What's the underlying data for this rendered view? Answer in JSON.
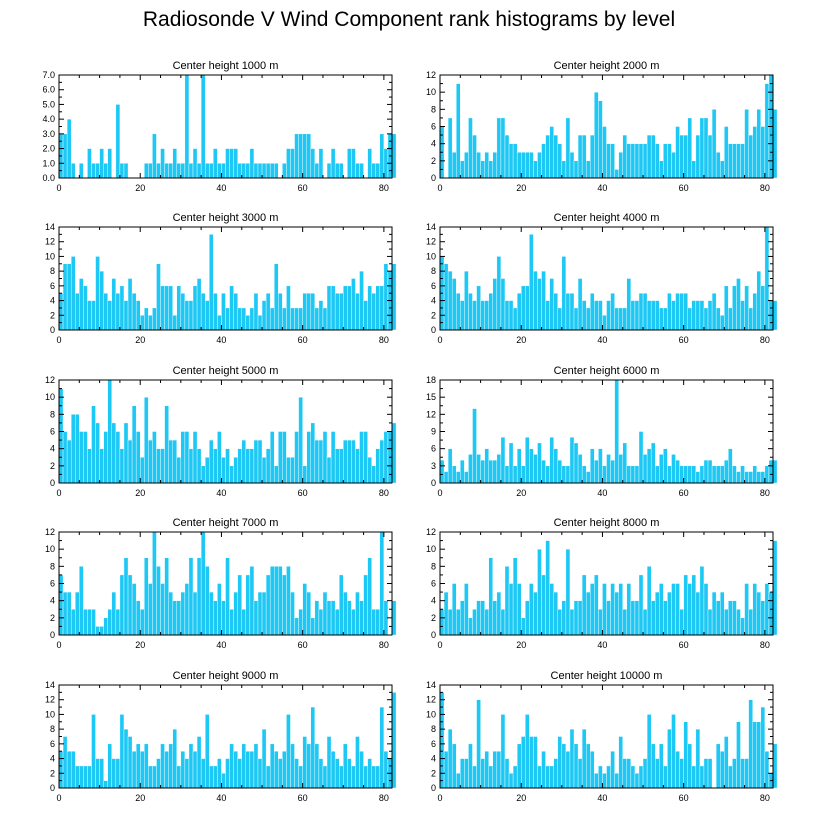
{
  "title": "Radiosonde V Wind Component rank histograms by level",
  "colors": {
    "bar": "#1ec8f5",
    "axis": "#000000",
    "background": "#ffffff"
  },
  "chart_data": [
    {
      "type": "bar",
      "title": "Center height 1000 m",
      "xlabel": "",
      "ylabel": "",
      "xlim": [
        0,
        82
      ],
      "ylim": [
        0,
        7
      ],
      "xticks": [
        0,
        20,
        40,
        60,
        80
      ],
      "yticks": [
        "0.0",
        "1.0",
        "2.0",
        "3.0",
        "4.0",
        "5.0",
        "6.0",
        "7.0"
      ],
      "values": [
        3,
        3,
        4,
        1,
        0,
        1,
        0,
        2,
        1,
        1,
        2,
        1,
        2,
        0,
        5,
        1,
        1,
        0,
        0,
        0,
        0,
        1,
        1,
        3,
        1,
        2,
        1,
        1,
        2,
        1,
        1,
        7,
        1,
        2,
        1,
        7,
        1,
        1,
        2,
        1,
        1,
        2,
        2,
        2,
        1,
        1,
        1,
        2,
        1,
        1,
        1,
        1,
        1,
        1,
        0,
        1,
        2,
        2,
        3,
        3,
        3,
        3,
        2,
        1,
        2,
        0,
        1,
        2,
        1,
        1,
        0,
        2,
        2,
        1,
        1,
        0,
        2,
        1,
        1,
        3,
        2,
        3,
        3
      ]
    },
    {
      "type": "bar",
      "title": "Center height 2000 m",
      "xlabel": "",
      "ylabel": "",
      "xlim": [
        0,
        82
      ],
      "ylim": [
        0,
        12
      ],
      "xticks": [
        0,
        20,
        40,
        60,
        80
      ],
      "yticks": [
        "0",
        "2",
        "4",
        "6",
        "8",
        "10",
        "12"
      ],
      "values": [
        6,
        0,
        7,
        3,
        11,
        2,
        3,
        7,
        5,
        3,
        2,
        3,
        2,
        3,
        7,
        7,
        5,
        4,
        4,
        3,
        3,
        3,
        3,
        2,
        3,
        4,
        5,
        6,
        5,
        4,
        2,
        7,
        3,
        2,
        5,
        5,
        2,
        5,
        10,
        9,
        6,
        4,
        4,
        1,
        3,
        5,
        4,
        4,
        4,
        4,
        4,
        5,
        5,
        4,
        2,
        4,
        4,
        3,
        6,
        5,
        5,
        7,
        2,
        5,
        7,
        7,
        5,
        8,
        3,
        2,
        6,
        4,
        4,
        4,
        4,
        8,
        5,
        6,
        8,
        6,
        11,
        12,
        8
      ]
    },
    {
      "type": "bar",
      "title": "Center height 3000 m",
      "xlabel": "",
      "ylabel": "",
      "xlim": [
        0,
        82
      ],
      "ylim": [
        0,
        14
      ],
      "xticks": [
        0,
        20,
        40,
        60,
        80
      ],
      "yticks": [
        "0",
        "2",
        "4",
        "6",
        "8",
        "10",
        "12",
        "14"
      ],
      "values": [
        5,
        9,
        9,
        10,
        5,
        7,
        6,
        4,
        4,
        10,
        8,
        5,
        4,
        7,
        5,
        6,
        4,
        7,
        5,
        4,
        2,
        3,
        2,
        3,
        9,
        6,
        6,
        6,
        2,
        6,
        5,
        4,
        4,
        6,
        7,
        5,
        4,
        13,
        5,
        2,
        5,
        3,
        6,
        5,
        3,
        3,
        2,
        3,
        5,
        2,
        4,
        5,
        3,
        9,
        5,
        3,
        6,
        3,
        3,
        3,
        5,
        5,
        5,
        3,
        4,
        3,
        6,
        6,
        5,
        5,
        6,
        6,
        7,
        5,
        8,
        4,
        6,
        5,
        6,
        6,
        9,
        8,
        9
      ]
    },
    {
      "type": "bar",
      "title": "Center height 4000 m",
      "xlabel": "",
      "ylabel": "",
      "xlim": [
        0,
        82
      ],
      "ylim": [
        0,
        14
      ],
      "xticks": [
        0,
        20,
        40,
        60,
        80
      ],
      "yticks": [
        "0",
        "2",
        "4",
        "6",
        "8",
        "10",
        "12",
        "14"
      ],
      "values": [
        10,
        9,
        8,
        7,
        5,
        4,
        8,
        5,
        4,
        6,
        4,
        4,
        5,
        7,
        10,
        7,
        4,
        4,
        3,
        5,
        6,
        6,
        13,
        8,
        7,
        8,
        4,
        7,
        5,
        3,
        10,
        5,
        5,
        3,
        7,
        4,
        3,
        5,
        4,
        4,
        2,
        4,
        5,
        3,
        3,
        3,
        7,
        4,
        4,
        5,
        5,
        4,
        4,
        4,
        3,
        3,
        5,
        4,
        5,
        5,
        5,
        3,
        4,
        4,
        4,
        3,
        4,
        5,
        3,
        2,
        6,
        3,
        6,
        7,
        4,
        6,
        3,
        5,
        8,
        6,
        14,
        4,
        4
      ]
    },
    {
      "type": "bar",
      "title": "Center height 5000 m",
      "xlabel": "",
      "ylabel": "",
      "xlim": [
        0,
        82
      ],
      "ylim": [
        0,
        12
      ],
      "xticks": [
        0,
        20,
        40,
        60,
        80
      ],
      "yticks": [
        "0",
        "2",
        "4",
        "6",
        "8",
        "10",
        "12"
      ],
      "values": [
        11,
        6,
        5,
        8,
        8,
        6,
        6,
        4,
        9,
        7,
        4,
        6,
        12,
        7,
        6,
        4,
        7,
        5,
        9,
        6,
        3,
        10,
        5,
        6,
        4,
        4,
        9,
        5,
        5,
        3,
        6,
        6,
        4,
        6,
        4,
        2,
        3,
        5,
        4,
        6,
        3,
        4,
        2,
        3,
        4,
        5,
        4,
        4,
        5,
        5,
        3,
        4,
        6,
        2,
        6,
        6,
        3,
        3,
        6,
        10,
        2,
        6,
        7,
        5,
        5,
        6,
        3,
        6,
        4,
        4,
        5,
        5,
        5,
        4,
        6,
        6,
        3,
        2,
        4,
        5,
        6,
        6,
        7
      ]
    },
    {
      "type": "bar",
      "title": "Center height 6000 m",
      "xlabel": "",
      "ylabel": "",
      "xlim": [
        0,
        82
      ],
      "ylim": [
        0,
        18
      ],
      "xticks": [
        0,
        20,
        40,
        60,
        80
      ],
      "yticks": [
        "0",
        "3",
        "6",
        "9",
        "12",
        "15",
        "18"
      ],
      "values": [
        4,
        2,
        6,
        3,
        2,
        4,
        2,
        5,
        13,
        5,
        4,
        6,
        4,
        4,
        5,
        8,
        3,
        7,
        3,
        6,
        3,
        8,
        6,
        5,
        7,
        4,
        3,
        8,
        6,
        4,
        3,
        3,
        8,
        7,
        5,
        3,
        2,
        6,
        4,
        6,
        3,
        5,
        4,
        18,
        5,
        7,
        3,
        3,
        3,
        9,
        5,
        6,
        7,
        3,
        5,
        6,
        3,
        5,
        4,
        3,
        3,
        3,
        3,
        2,
        3,
        4,
        4,
        3,
        3,
        3,
        4,
        6,
        3,
        2,
        3,
        2,
        2,
        3,
        2,
        2,
        3,
        4,
        4
      ]
    },
    {
      "type": "bar",
      "title": "Center height 7000 m",
      "xlabel": "",
      "ylabel": "",
      "xlim": [
        0,
        82
      ],
      "ylim": [
        0,
        12
      ],
      "xticks": [
        0,
        20,
        40,
        60,
        80
      ],
      "yticks": [
        "0",
        "2",
        "4",
        "6",
        "8",
        "10",
        "12"
      ],
      "values": [
        7,
        5,
        5,
        3,
        5,
        8,
        3,
        3,
        3,
        1,
        1,
        2,
        3,
        5,
        3,
        7,
        9,
        7,
        6,
        4,
        3,
        9,
        6,
        12,
        8,
        6,
        9,
        5,
        4,
        4,
        5,
        6,
        9,
        5,
        9,
        12,
        8,
        5,
        4,
        6,
        4,
        9,
        3,
        5,
        7,
        3,
        7,
        8,
        4,
        5,
        5,
        7,
        8,
        8,
        8,
        7,
        8,
        5,
        2,
        3,
        6,
        5,
        2,
        4,
        3,
        5,
        4,
        4,
        3,
        7,
        5,
        4,
        3,
        5,
        4,
        7,
        9,
        3,
        3,
        12,
        4,
        0,
        4
      ]
    },
    {
      "type": "bar",
      "title": "Center height 8000 m",
      "xlabel": "",
      "ylabel": "",
      "xlim": [
        0,
        82
      ],
      "ylim": [
        0,
        12
      ],
      "xticks": [
        0,
        20,
        40,
        60,
        80
      ],
      "yticks": [
        "0",
        "2",
        "4",
        "6",
        "8",
        "10",
        "12"
      ],
      "values": [
        3,
        5,
        3,
        6,
        3,
        4,
        6,
        2,
        3,
        4,
        4,
        3,
        9,
        4,
        5,
        3,
        8,
        6,
        9,
        6,
        2,
        4,
        6,
        5,
        10,
        7,
        11,
        6,
        5,
        3,
        4,
        10,
        3,
        4,
        4,
        7,
        5,
        6,
        7,
        3,
        6,
        4,
        6,
        5,
        6,
        3,
        6,
        4,
        4,
        7,
        3,
        8,
        4,
        5,
        6,
        4,
        5,
        6,
        6,
        3,
        7,
        6,
        7,
        5,
        8,
        6,
        3,
        5,
        4,
        5,
        3,
        4,
        4,
        3,
        2,
        6,
        3,
        6,
        5,
        4,
        6,
        5,
        11
      ]
    },
    {
      "type": "bar",
      "title": "Center height 9000 m",
      "xlabel": "",
      "ylabel": "",
      "xlim": [
        0,
        82
      ],
      "ylim": [
        0,
        14
      ],
      "xticks": [
        0,
        20,
        40,
        60,
        80
      ],
      "yticks": [
        "0",
        "2",
        "4",
        "6",
        "8",
        "10",
        "12",
        "14"
      ],
      "values": [
        5,
        7,
        5,
        5,
        3,
        3,
        3,
        3,
        10,
        4,
        4,
        1,
        6,
        4,
        4,
        10,
        8,
        7,
        5,
        6,
        5,
        6,
        3,
        3,
        4,
        6,
        5,
        6,
        8,
        3,
        5,
        4,
        6,
        5,
        7,
        4,
        10,
        3,
        3,
        4,
        2,
        4,
        6,
        5,
        4,
        6,
        5,
        5,
        6,
        4,
        8,
        3,
        6,
        5,
        4,
        5,
        10,
        6,
        4,
        3,
        7,
        6,
        11,
        6,
        4,
        3,
        7,
        5,
        4,
        3,
        6,
        4,
        3,
        7,
        5,
        3,
        4,
        3,
        3,
        11,
        5,
        4,
        13
      ]
    },
    {
      "type": "bar",
      "title": "Center height 10000 m",
      "xlabel": "",
      "ylabel": "",
      "xlim": [
        0,
        82
      ],
      "ylim": [
        0,
        14
      ],
      "xticks": [
        0,
        20,
        40,
        60,
        80
      ],
      "yticks": [
        "0",
        "2",
        "4",
        "6",
        "8",
        "10",
        "12",
        "14"
      ],
      "values": [
        13,
        5,
        8,
        6,
        2,
        4,
        4,
        6,
        3,
        12,
        4,
        5,
        3,
        5,
        5,
        10,
        4,
        2,
        3,
        6,
        7,
        10,
        7,
        7,
        3,
        5,
        3,
        3,
        4,
        7,
        6,
        5,
        8,
        6,
        4,
        8,
        6,
        5,
        2,
        3,
        2,
        3,
        5,
        2,
        7,
        4,
        4,
        3,
        2,
        3,
        4,
        10,
        6,
        4,
        6,
        3,
        8,
        10,
        5,
        4,
        9,
        6,
        3,
        8,
        3,
        4,
        4,
        0,
        6,
        5,
        7,
        3,
        4,
        9,
        4,
        4,
        12,
        9,
        9,
        11,
        5,
        2,
        6
      ]
    }
  ]
}
